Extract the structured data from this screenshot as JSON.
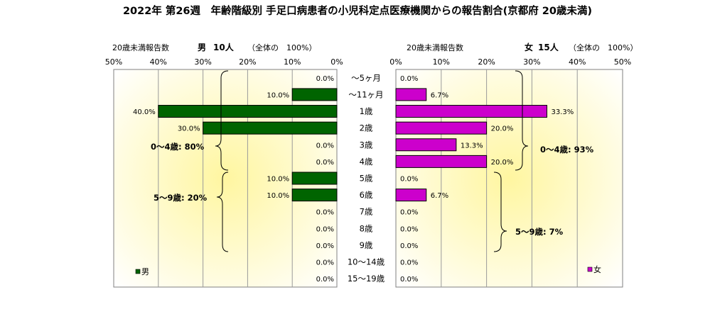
{
  "chart_data": {
    "type": "bar",
    "title": "2022年 第26週　年齢階級別 手足口病患者の小児科定点医療機関からの報告割合(京都府 20歳未満)",
    "categories": [
      "～5ヶ月",
      "～11ヶ月",
      "1歳",
      "2歳",
      "3歳",
      "4歳",
      "5歳",
      "6歳",
      "7歳",
      "8歳",
      "9歳",
      "10～14歳",
      "15～19歳"
    ],
    "series": [
      {
        "name": "男",
        "color": "#006400",
        "values": [
          0.0,
          10.0,
          40.0,
          30.0,
          0.0,
          0.0,
          10.0,
          10.0,
          0.0,
          0.0,
          0.0,
          0.0,
          0.0
        ],
        "labels": [
          "0.0%",
          "10.0%",
          "40.0%",
          "30.0%",
          "0.0%",
          "0.0%",
          "10.0%",
          "10.0%",
          "0.0%",
          "0.0%",
          "0.0%",
          "0.0%",
          "0.0%"
        ]
      },
      {
        "name": "女",
        "color": "#CC00CC",
        "values": [
          0.0,
          6.7,
          33.3,
          20.0,
          13.3,
          20.0,
          0.0,
          6.7,
          0.0,
          0.0,
          0.0,
          0.0,
          0.0
        ],
        "labels": [
          "0.0%",
          "6.7%",
          "33.3%",
          "20.0%",
          "13.3%",
          "20.0%",
          "0.0%",
          "6.7%",
          "0.0%",
          "0.0%",
          "0.0%",
          "0.0%",
          "0.0%"
        ]
      }
    ],
    "xlim": [
      0,
      50
    ],
    "ticks": [
      "50%",
      "40%",
      "30%",
      "20%",
      "10%",
      "0%"
    ],
    "ticks_right": [
      "0%",
      "10%",
      "20%",
      "30%",
      "40%",
      "50%"
    ],
    "left_header": {
      "label": "20歳未満報告数",
      "sex": "男",
      "count": "10人",
      "share": "（全体の　100%）"
    },
    "right_header": {
      "label": "20歳未満報告数",
      "sex": "女",
      "count": "15人",
      "share": "（全体の　100%）"
    },
    "annotations": {
      "male_0_4": "0～4歳: 80%",
      "male_5_9": "5～9歳: 20%",
      "female_0_4": "0～4歳: 93%",
      "female_5_9": "5～9歳: 7%"
    },
    "legend": {
      "male": "男",
      "female": "女",
      "placement": "bottom-left / bottom-right"
    },
    "grid": true
  }
}
